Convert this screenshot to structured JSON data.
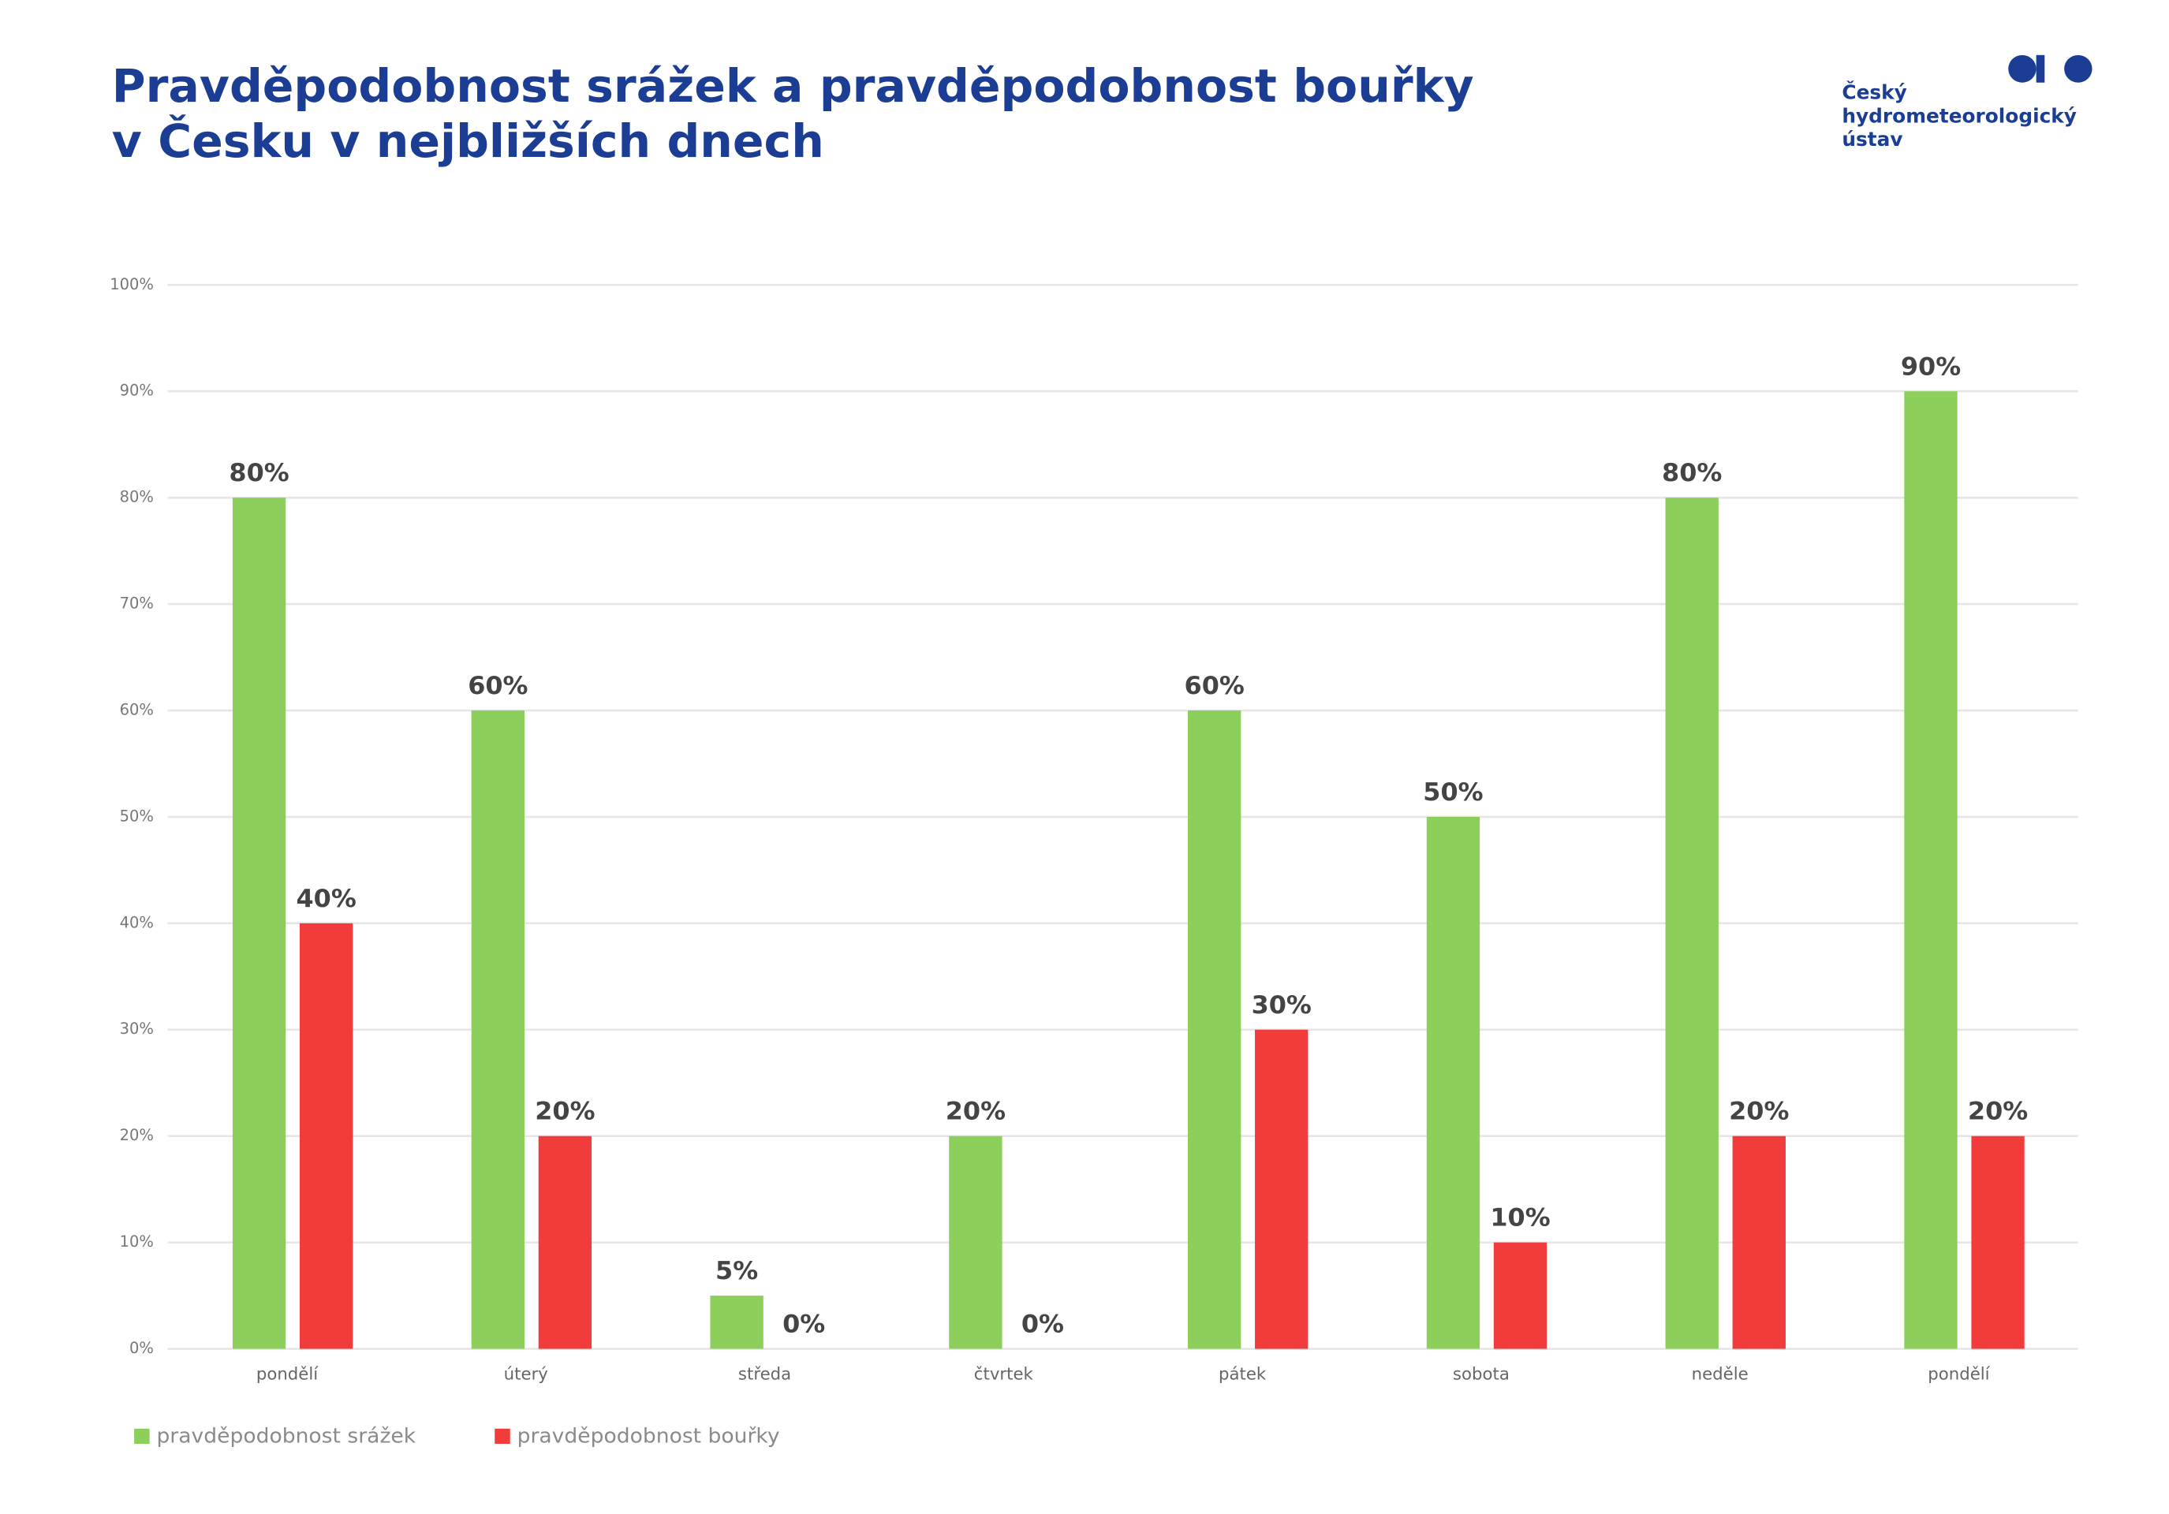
{
  "chart_data": {
    "type": "bar",
    "title": [
      "Pravděpodobnost srážek a pravděpodobnost bouřky",
      "v Česku v nejbližších dnech"
    ],
    "logo": [
      "Český",
      "hydrometeorologický",
      "ústav"
    ],
    "categories": [
      "pondělí",
      "úterý",
      "středa",
      "čtvrtek",
      "pátek",
      "sobota",
      "neděle",
      "pondělí"
    ],
    "series": [
      {
        "name": "pravděpodobnost srážek",
        "color": "#8ccf5a",
        "values": [
          80,
          60,
          5,
          20,
          60,
          50,
          80,
          90
        ],
        "value_labels": [
          "80%",
          "60%",
          "5%",
          "20%",
          "60%",
          "50%",
          "80%",
          "90%"
        ]
      },
      {
        "name": "pravděpodobnost bouřky",
        "color": "#f23b3b",
        "values": [
          40,
          20,
          0,
          0,
          30,
          10,
          20,
          20
        ],
        "value_labels": [
          "40%",
          "20%",
          "0%",
          "0%",
          "30%",
          "10%",
          "20%",
          "20%"
        ]
      }
    ],
    "ylim": [
      0,
      100
    ],
    "yticks": [
      {
        "value": 0,
        "label": "0%"
      },
      {
        "value": 10,
        "label": "10%"
      },
      {
        "value": 20,
        "label": "20%"
      },
      {
        "value": 30,
        "label": "30%"
      },
      {
        "value": 40,
        "label": "40%"
      },
      {
        "value": 50,
        "label": "50%"
      },
      {
        "value": 60,
        "label": "60%"
      },
      {
        "value": 70,
        "label": "70%"
      },
      {
        "value": 80,
        "label": "80%"
      },
      {
        "value": 90,
        "label": "90%"
      },
      {
        "value": 100,
        "label": "100%"
      }
    ],
    "grid": true,
    "legend": "bottom-left"
  }
}
